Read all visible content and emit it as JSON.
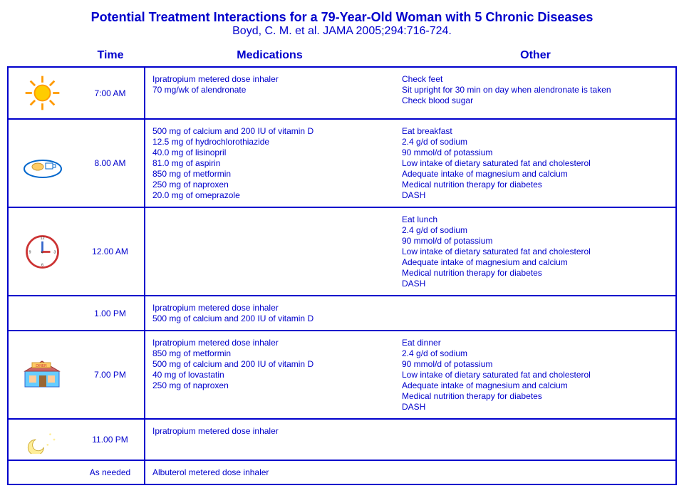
{
  "title": "Potential Treatment Interactions for a 79-Year-Old Woman with 5 Chronic Diseases",
  "subtitle": "Boyd, C. M. et al. JAMA 2005;294:716-724.",
  "columns": {
    "icon": "",
    "time": "Time",
    "meds": "Medications",
    "other": "Other"
  },
  "rows": [
    {
      "icon": "sun",
      "time": "7:00 AM",
      "meds": [
        "Ipratropium metered dose  inhaler",
        "70 mg/wk of alendronate"
      ],
      "other": [
        "Check feet",
        "Sit upright for 30 min on day when alendronate is taken",
        "Check blood sugar"
      ]
    },
    {
      "icon": "breakfast",
      "time": "8.00 AM",
      "meds": [
        "500 mg of calcium and 200 IU of vitamin D",
        "12.5 mg of hydrochlorothiazide",
        "40.0 mg of lisinopril",
        "81.0 mg of aspirin",
        "850 mg of metformin",
        "250 mg of naproxen",
        "20.0 mg of omeprazole"
      ],
      "other": [
        "Eat breakfast",
        "2.4 g/d of sodium",
        "90 mmol/d of potassium",
        "Low intake of dietary saturated fat and cholesterol",
        "Adequate intake of magnesium and calcium",
        "Medical nutrition therapy for diabetes",
        "DASH"
      ]
    },
    {
      "icon": "clock",
      "time": "12.00 AM",
      "meds": [],
      "other": [
        "Eat lunch",
        "2.4 g/d of sodium",
        "90 mmol/d of potassium",
        "Low intake of dietary saturated fat and cholesterol",
        "Adequate intake of magnesium and calcium",
        "Medical nutrition therapy for diabetes",
        "DASH"
      ]
    },
    {
      "icon": "",
      "time": "1.00 PM",
      "meds": [
        "Ipratropium metered dose  inhaler",
        "500 mg of calcium and 200 IU of vitamin D"
      ],
      "other": []
    },
    {
      "icon": "diner",
      "time": "7.00 PM",
      "meds": [
        "Ipratropium metered dose  inhaler",
        "850 mg of metformin",
        "500 mg of calcium and 200 IU of vitamin D",
        "40 mg of lovastatin",
        "250 mg of naproxen"
      ],
      "other": [
        "Eat dinner",
        "2.4 g/d of sodium",
        "90 mmol/d of potassium",
        "Low intake of dietary saturated fat and cholesterol",
        "Adequate intake of magnesium and calcium",
        "Medical nutrition therapy for diabetes",
        "DASH"
      ]
    },
    {
      "icon": "moon",
      "time": "11.00 PM",
      "meds": [
        "Ipratropium metered dose  inhaler"
      ],
      "other": []
    },
    {
      "icon": "",
      "time": "As needed",
      "meds": [
        "Albuterol metered dose inhaler"
      ],
      "other": []
    }
  ]
}
